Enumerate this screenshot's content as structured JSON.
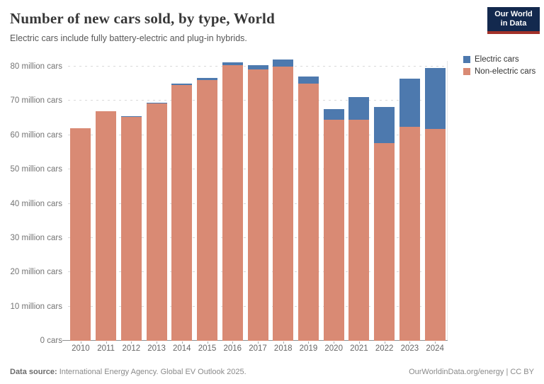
{
  "header": {
    "title": "Number of new cars sold, by type, World",
    "subtitle": "Electric cars include fully battery-electric and plug-in hybrids.",
    "logo": {
      "line1": "Our World",
      "line2": "in Data"
    }
  },
  "legend": [
    {
      "label": "Electric cars",
      "color": "#4d79ae"
    },
    {
      "label": "Non-electric cars",
      "color": "#d98a74"
    }
  ],
  "chart_data": {
    "type": "bar",
    "stacked": true,
    "title": "Number of new cars sold, by type, World",
    "categories": [
      "2010",
      "2011",
      "2012",
      "2013",
      "2014",
      "2015",
      "2016",
      "2017",
      "2018",
      "2019",
      "2020",
      "2021",
      "2022",
      "2023",
      "2024"
    ],
    "series": [
      {
        "name": "Electric cars",
        "color": "#4d79ae",
        "values": [
          0.01,
          0.06,
          0.12,
          0.2,
          0.35,
          0.55,
          0.75,
          1.2,
          2.1,
          2.2,
          3.0,
          6.6,
          10.5,
          14.0,
          17.8
        ]
      },
      {
        "name": "Non-electric cars",
        "color": "#d98a74",
        "values": [
          62.0,
          66.9,
          65.4,
          69.2,
          74.7,
          76.1,
          80.4,
          79.2,
          80.0,
          75.0,
          64.6,
          64.6,
          57.7,
          62.4,
          61.8
        ]
      }
    ],
    "xlabel": "",
    "ylabel": "",
    "ylim": [
      0,
      80
    ],
    "grid": "horizontal-dashed",
    "legend_position": "right",
    "y_ticks": [
      {
        "value": 0,
        "label": "0 cars"
      },
      {
        "value": 10,
        "label": "10 million cars"
      },
      {
        "value": 20,
        "label": "20 million cars"
      },
      {
        "value": 30,
        "label": "30 million cars"
      },
      {
        "value": 40,
        "label": "40 million cars"
      },
      {
        "value": 50,
        "label": "50 million cars"
      },
      {
        "value": 60,
        "label": "60 million cars"
      },
      {
        "value": 70,
        "label": "70 million cars"
      },
      {
        "value": 80,
        "label": "80 million cars"
      }
    ]
  },
  "footer": {
    "source_label": "Data source:",
    "source_text": "International Energy Agency. Global EV Outlook 2025.",
    "credit": "OurWorldinData.org/energy | CC BY"
  }
}
